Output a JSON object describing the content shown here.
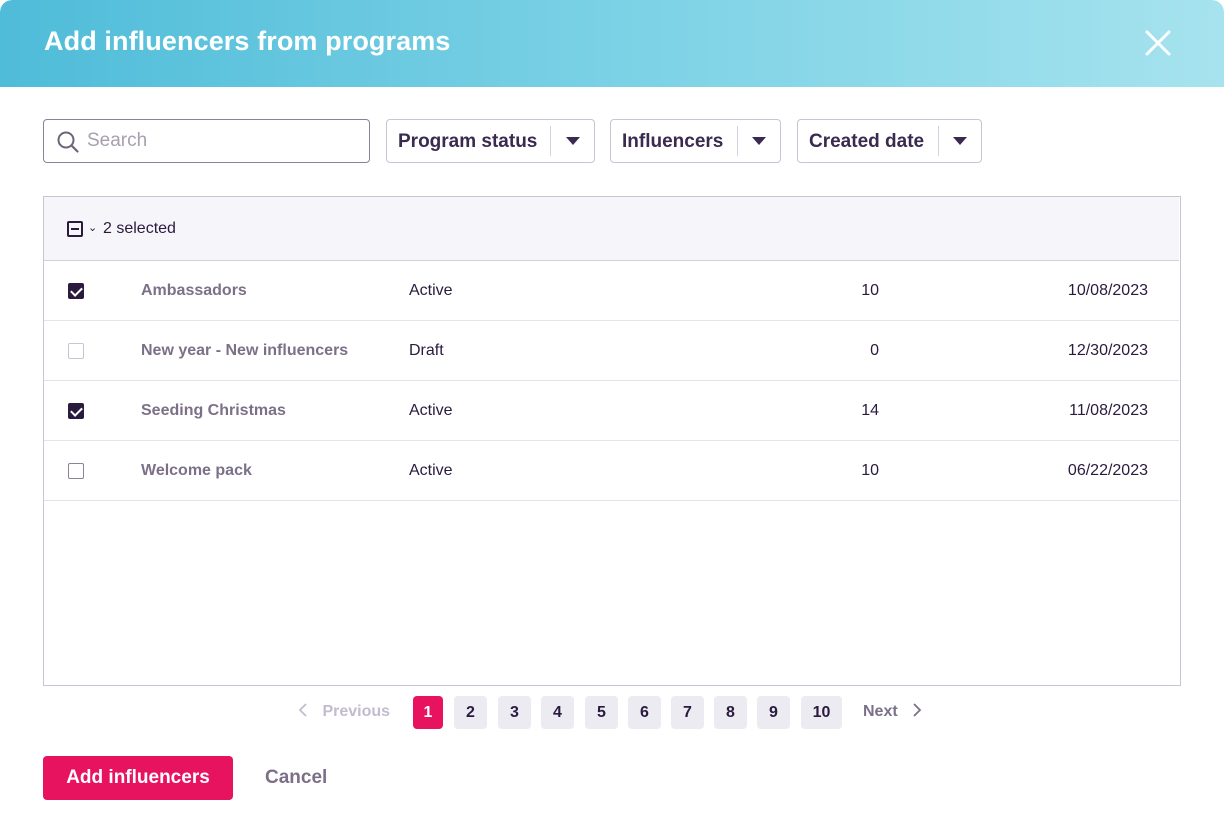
{
  "header": {
    "title": "Add influencers from programs"
  },
  "search": {
    "placeholder": "Search",
    "value": ""
  },
  "filters": [
    {
      "label": "Program status"
    },
    {
      "label": "Influencers"
    },
    {
      "label": "Created date"
    }
  ],
  "table": {
    "selected_label": "2 selected",
    "rows": [
      {
        "name": "Ambassadors",
        "status": "Active",
        "count": "10",
        "date": "10/08/2023",
        "checked": true
      },
      {
        "name": "New year - New influencers",
        "status": "Draft",
        "count": "0",
        "date": "12/30/2023",
        "checked": false
      },
      {
        "name": "Seeding Christmas",
        "status": "Active",
        "count": "14",
        "date": "11/08/2023",
        "checked": true
      },
      {
        "name": "Welcome pack",
        "status": "Active",
        "count": "10",
        "date": "06/22/2023",
        "checked": false
      }
    ]
  },
  "pagination": {
    "previous_label": "Previous",
    "next_label": "Next",
    "pages": [
      "1",
      "2",
      "3",
      "4",
      "5",
      "6",
      "7",
      "8",
      "9",
      "10"
    ],
    "current": "1"
  },
  "footer": {
    "primary_label": "Add influencers",
    "cancel_label": "Cancel"
  },
  "colors": {
    "header_gradient_start": "#4fbcd9",
    "header_gradient_end": "#a6e3ee",
    "accent": "#e8135e",
    "text_dark": "#2a1a3e",
    "text_muted": "#7c7088"
  },
  "icons": {
    "close": "close-icon",
    "search": "search-icon",
    "caret": "caret-down-icon",
    "chevron_left": "chevron-left-icon",
    "chevron_right": "chevron-right-icon"
  }
}
